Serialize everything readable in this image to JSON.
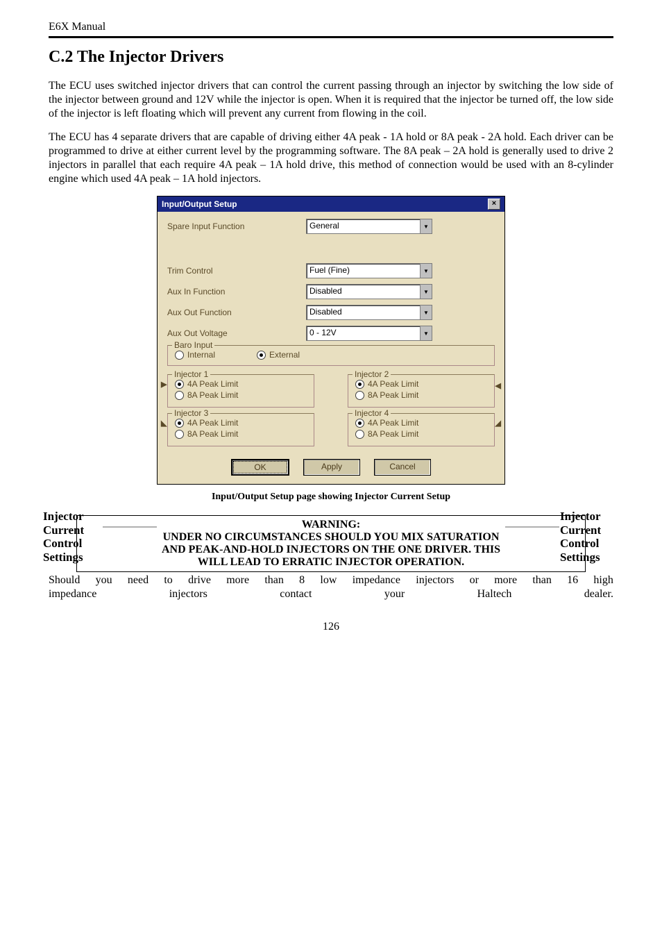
{
  "header": {
    "doc_title": "E6X Manual"
  },
  "section": {
    "heading": "C.2 The Injector Drivers",
    "para1": "The ECU uses switched injector drivers that can control the current passing through an injector by switching the low side of the injector between ground and 12V while the injector is open.  When it is required that the injector be turned off, the low side of the injector is left floating which will prevent any current from flowing in the coil.",
    "para2": "The ECU has 4 separate drivers that are capable of driving either 4A peak - 1A hold or 8A peak - 2A hold.  Each driver can be programmed to drive at either current level by the programming software.  The 8A peak – 2A hold is generally used to drive 2 injectors in parallel that each require 4A peak – 1A hold drive, this method of connection would be used with an 8-cylinder engine which used 4A peak – 1A hold injectors."
  },
  "callout_left": "Injector Current Control Settings",
  "callout_right": "Injector Current Control Settings",
  "dialog": {
    "title": "Input/Output Setup",
    "rows": {
      "spare_input": {
        "label": "Spare Input Function",
        "value": "General"
      },
      "trim_control": {
        "label": "Trim Control",
        "value": "Fuel (Fine)"
      },
      "aux_in": {
        "label": "Aux In Function",
        "value": "Disabled"
      },
      "aux_out": {
        "label": "Aux Out Function",
        "value": "Disabled"
      },
      "aux_voltage": {
        "label": "Aux Out Voltage",
        "value": "0 - 12V"
      }
    },
    "baro": {
      "legend": "Baro Input",
      "opt_internal": "Internal",
      "opt_external": "External"
    },
    "injectors": {
      "opt4a": "4A Peak Limit",
      "opt8a": "8A Peak Limit",
      "inj1": "Injector 1",
      "inj2": "Injector 2",
      "inj3": "Injector 3",
      "inj4": "Injector 4"
    },
    "buttons": {
      "ok": "OK",
      "apply": "Apply",
      "cancel": "Cancel"
    }
  },
  "caption": "Input/Output Setup page showing Injector Current Setup",
  "warning": {
    "title": "WARNING:",
    "line1": "UNDER NO CIRCUMSTANCES SHOULD YOU MIX SATURATION",
    "line2": "AND PEAK-AND-HOLD INJECTORS ON THE ONE DRIVER. THIS",
    "line3": "WILL LEAD TO ERRATIC INJECTOR OPERATION."
  },
  "tail": {
    "l1": [
      "Should",
      "you",
      "need",
      "to",
      "drive",
      "more",
      "than",
      "8",
      "low",
      "impedance",
      "injectors",
      "or",
      "more",
      "than",
      "16",
      "high"
    ],
    "l2": [
      "impedance",
      "injectors",
      "contact",
      "your",
      "Haltech",
      "dealer."
    ]
  },
  "page_number": "126"
}
